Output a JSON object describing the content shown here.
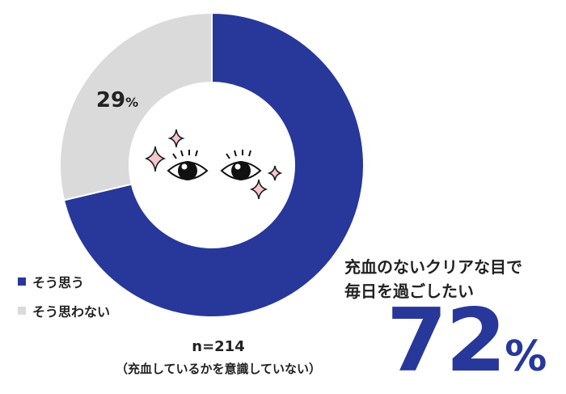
{
  "chart_data": {
    "type": "pie",
    "categories": [
      "そう思う",
      "そう思わない"
    ],
    "values": [
      72,
      29
    ],
    "colors": [
      "#27379a",
      "#dadada"
    ],
    "data_labels": [
      "72%",
      "29%"
    ],
    "legend_position": "bottom-left"
  },
  "legend": [
    {
      "label": "そう思う",
      "color": "#27379a"
    },
    {
      "label": "そう思わない",
      "color": "#dadada"
    }
  ],
  "label_29": {
    "value": "29",
    "unit": "%"
  },
  "headline": {
    "line1": "充血のないクリアな目で",
    "line2": "毎日を過ごしたい"
  },
  "big_value": {
    "value": "72",
    "unit": "%"
  },
  "sample_size": "n=214",
  "sample_note": "（充血しているかを意識していない）",
  "center_icon": "sparkling-eyes-icon"
}
